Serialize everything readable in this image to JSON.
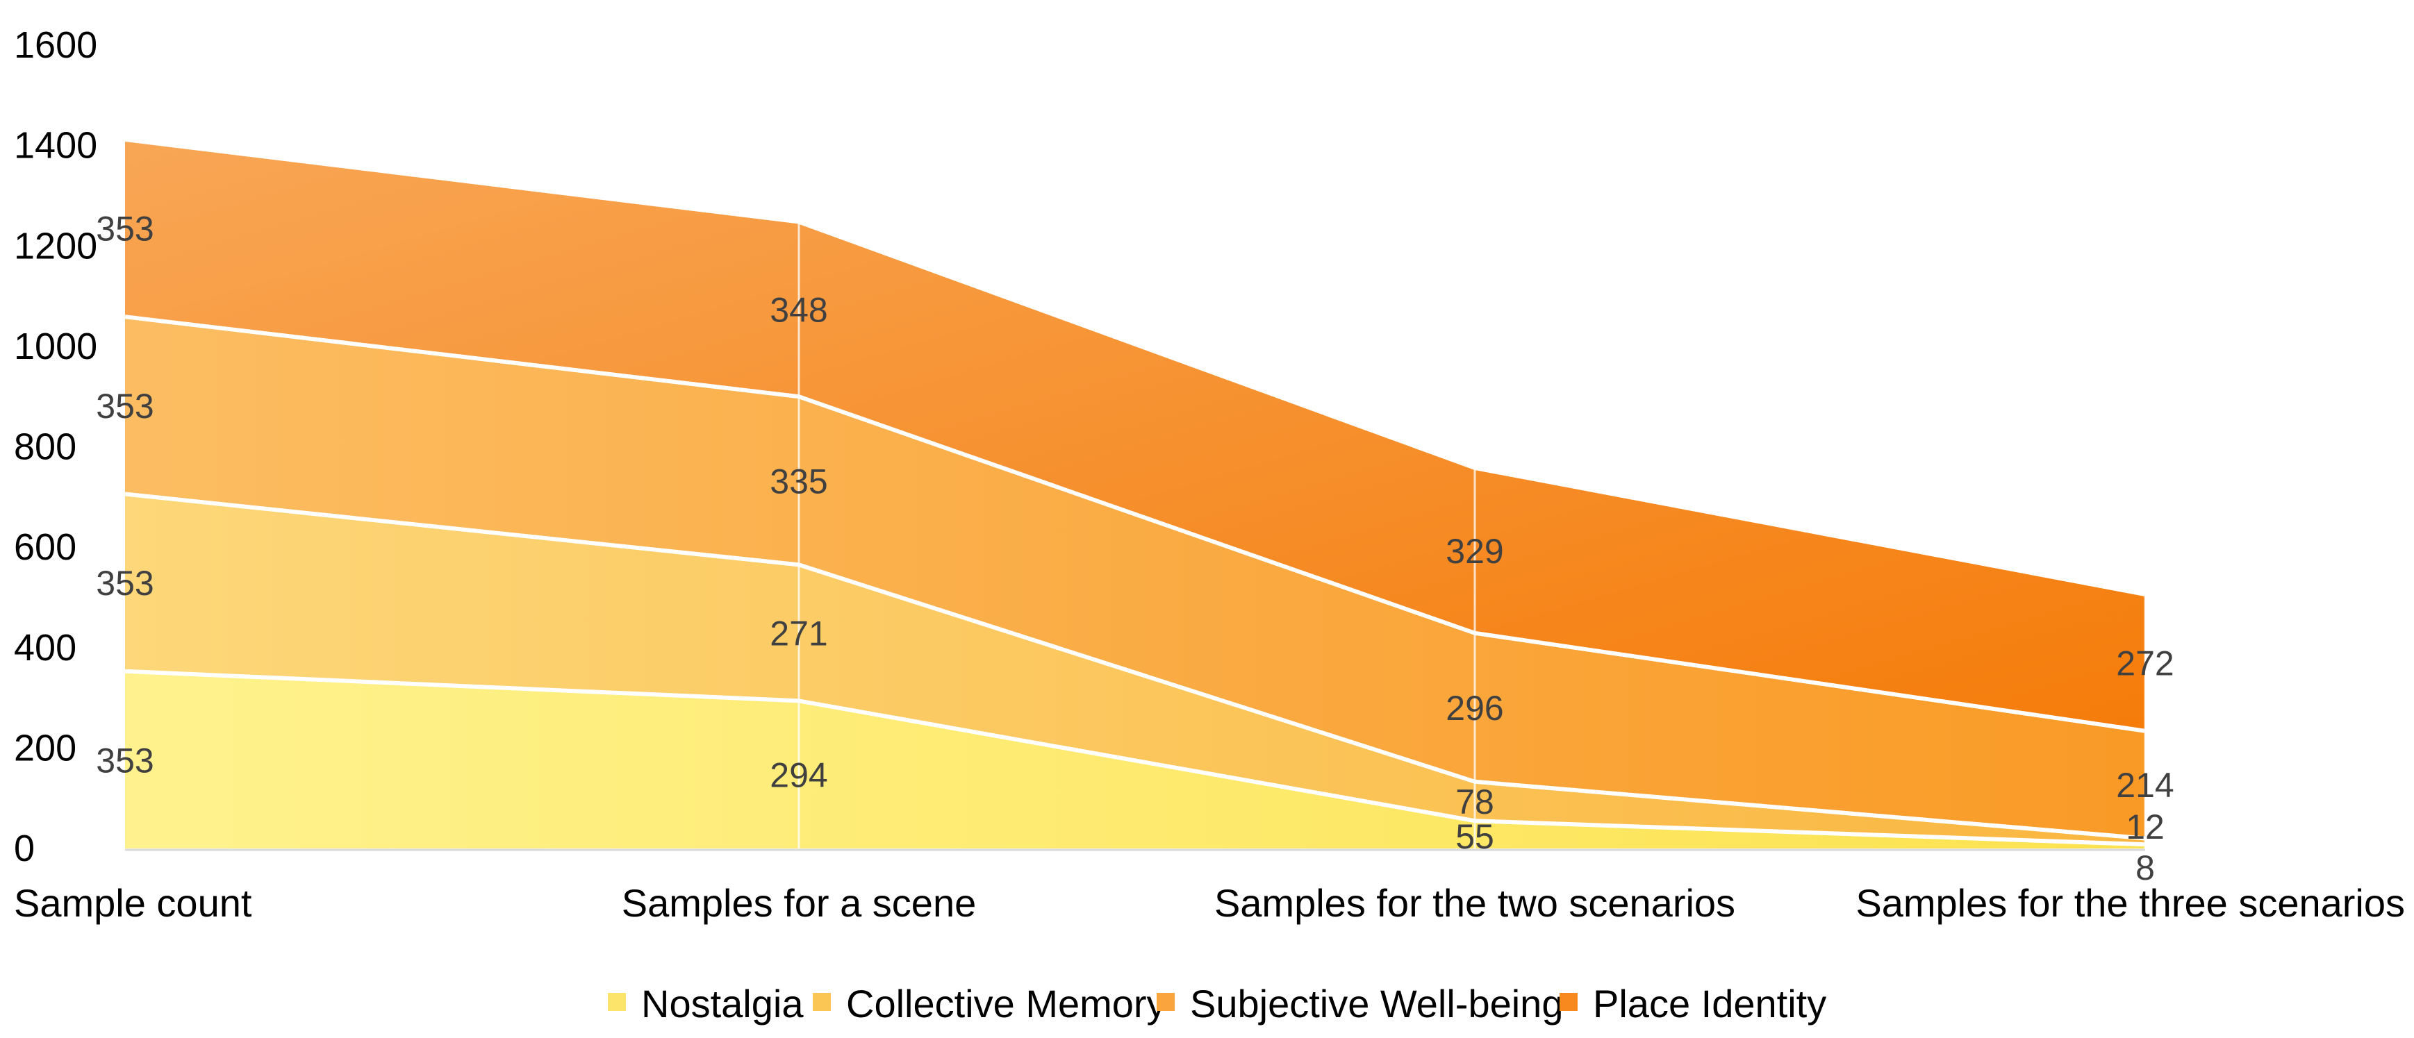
{
  "chart_data": {
    "type": "area",
    "stacked": true,
    "title": "",
    "xlabel": "",
    "ylabel": "",
    "ylim": [
      0,
      1600
    ],
    "yticks": [
      0,
      200,
      400,
      600,
      800,
      1000,
      1200,
      1400,
      1600
    ],
    "categories": [
      "Sample count",
      "Samples for a scene",
      "Samples for the two scenarios",
      "Samples for the three scenarios"
    ],
    "series": [
      {
        "name": "Nostalgia",
        "values": [
          353,
          294,
          55,
          8
        ],
        "color": "#FCE36A"
      },
      {
        "name": "Collective Memory",
        "values": [
          353,
          271,
          78,
          12
        ],
        "color": "#FBC653"
      },
      {
        "name": "Subjective Well-being",
        "values": [
          353,
          335,
          296,
          214
        ],
        "color": "#F9A43C"
      },
      {
        "name": "Place Identity",
        "values": [
          353,
          348,
          329,
          272
        ],
        "color": "#F7891F"
      }
    ],
    "legend_position": "bottom",
    "grid": false
  }
}
